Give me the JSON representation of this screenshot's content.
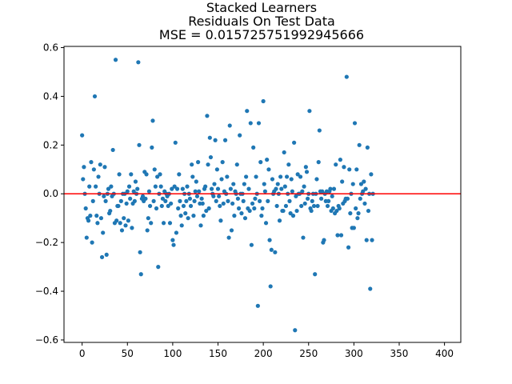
{
  "chart_data": {
    "type": "scatter",
    "title_lines": [
      "Stacked Learners",
      "Residuals On Test Data",
      "MSE = 0.015725751992945666"
    ],
    "xlabel": "",
    "ylabel": "",
    "xlim": [
      -20,
      418
    ],
    "ylim": [
      -0.61,
      0.605
    ],
    "x_ticks": [
      0,
      50,
      100,
      150,
      200,
      250,
      300,
      350,
      400
    ],
    "x_tick_labels": [
      "0",
      "50",
      "100",
      "150",
      "200",
      "250",
      "300",
      "350",
      "400"
    ],
    "y_ticks": [
      -0.6,
      -0.4,
      -0.2,
      0.0,
      0.2,
      0.4,
      0.6
    ],
    "y_tick_labels": [
      "−0.6",
      "−0.4",
      "−0.2",
      "0.0",
      "0.2",
      "0.4",
      "0.6"
    ],
    "grid": false,
    "reference_line": {
      "y": 0.0,
      "color": "#ff0000"
    },
    "point_color": "#1f77b4",
    "series": [
      {
        "points": [
          [
            0,
            0.24
          ],
          [
            1,
            0.06
          ],
          [
            2,
            0.11
          ],
          [
            3,
            0.0
          ],
          [
            4,
            -0.06
          ],
          [
            5,
            -0.18
          ],
          [
            6,
            -0.1
          ],
          [
            7,
            -0.11
          ],
          [
            8,
            0.03
          ],
          [
            9,
            -0.09
          ],
          [
            10,
            0.13
          ],
          [
            11,
            -0.2
          ],
          [
            12,
            -0.03
          ],
          [
            13,
            0.1
          ],
          [
            14,
            0.4
          ],
          [
            15,
            0.03
          ],
          [
            16,
            -0.09
          ],
          [
            17,
            -0.12
          ],
          [
            18,
            0.07
          ],
          [
            19,
            0.0
          ],
          [
            20,
            0.12
          ],
          [
            21,
            -0.1
          ],
          [
            22,
            -0.26
          ],
          [
            23,
            -0.16
          ],
          [
            24,
            -0.01
          ],
          [
            25,
            0.11
          ],
          [
            26,
            -0.03
          ],
          [
            27,
            -0.25
          ],
          [
            28,
            0.0
          ],
          [
            29,
            0.02
          ],
          [
            30,
            -0.08
          ],
          [
            31,
            -0.07
          ],
          [
            32,
            0.03
          ],
          [
            33,
            -0.01
          ],
          [
            34,
            0.18
          ],
          [
            35,
            0.0
          ],
          [
            36,
            -0.12
          ],
          [
            37,
            0.55
          ],
          [
            38,
            -0.11
          ],
          [
            39,
            -0.05
          ],
          [
            40,
            -0.05
          ],
          [
            41,
            0.08
          ],
          [
            42,
            -0.12
          ],
          [
            43,
            -0.03
          ],
          [
            44,
            -0.15
          ],
          [
            45,
            0.0
          ],
          [
            46,
            -0.1
          ],
          [
            47,
            0.0
          ],
          [
            48,
            -0.13
          ],
          [
            49,
            -0.04
          ],
          [
            50,
            0.01
          ],
          [
            51,
            -0.11
          ],
          [
            52,
            0.03
          ],
          [
            53,
            -0.02
          ],
          [
            54,
            0.08
          ],
          [
            55,
            -0.14
          ],
          [
            56,
            -0.04
          ],
          [
            57,
            0.01
          ],
          [
            58,
            -0.03
          ],
          [
            59,
            0.05
          ],
          [
            60,
            0.0
          ],
          [
            61,
            0.02
          ],
          [
            62,
            0.54
          ],
          [
            63,
            0.2
          ],
          [
            64,
            -0.24
          ],
          [
            65,
            -0.33
          ],
          [
            66,
            -0.02
          ],
          [
            67,
            -0.01
          ],
          [
            68,
            -0.03
          ],
          [
            69,
            0.09
          ],
          [
            70,
            -0.02
          ],
          [
            71,
            0.08
          ],
          [
            72,
            -0.15
          ],
          [
            73,
            -0.1
          ],
          [
            74,
            0.01
          ],
          [
            75,
            -0.05
          ],
          [
            76,
            -0.12
          ],
          [
            77,
            0.19
          ],
          [
            78,
            0.3
          ],
          [
            79,
            -0.03
          ],
          [
            80,
            0.1
          ],
          [
            81,
            0.03
          ],
          [
            82,
            -0.06
          ],
          [
            83,
            0.07
          ],
          [
            84,
            -0.3
          ],
          [
            85,
            0.0
          ],
          [
            86,
            0.08
          ],
          [
            87,
            0.03
          ],
          [
            88,
            -0.05
          ],
          [
            89,
            -0.02
          ],
          [
            90,
            -0.12
          ],
          [
            91,
            0.01
          ],
          [
            92,
            -0.03
          ],
          [
            93,
            0.0
          ],
          [
            94,
            -0.01
          ],
          [
            95,
            -0.05
          ],
          [
            96,
            0.0
          ],
          [
            97,
            -0.12
          ],
          [
            98,
            -0.04
          ],
          [
            99,
            0.02
          ],
          [
            100,
            -0.19
          ],
          [
            101,
            -0.21
          ],
          [
            102,
            0.03
          ],
          [
            103,
            0.21
          ],
          [
            104,
            -0.16
          ],
          [
            105,
            0.02
          ],
          [
            106,
            -0.06
          ],
          [
            107,
            0.08
          ],
          [
            108,
            -0.03
          ],
          [
            109,
            -0.09
          ],
          [
            110,
            -0.13
          ],
          [
            111,
            0.02
          ],
          [
            112,
            -0.05
          ],
          [
            113,
            0.0
          ],
          [
            114,
            -0.08
          ],
          [
            115,
            -0.03
          ],
          [
            116,
            0.03
          ],
          [
            117,
            -0.1
          ],
          [
            118,
            0.0
          ],
          [
            119,
            -0.02
          ],
          [
            120,
            -0.05
          ],
          [
            121,
            0.12
          ],
          [
            122,
            0.07
          ],
          [
            123,
            -0.09
          ],
          [
            124,
            -0.03
          ],
          [
            125,
            0.01
          ],
          [
            126,
            0.05
          ],
          [
            127,
            -0.01
          ],
          [
            128,
            0.13
          ],
          [
            129,
            0.01
          ],
          [
            130,
            -0.04
          ],
          [
            131,
            -0.13
          ],
          [
            132,
            -0.02
          ],
          [
            133,
            -0.04
          ],
          [
            134,
            -0.09
          ],
          [
            135,
            0.02
          ],
          [
            136,
            0.03
          ],
          [
            137,
            -0.07
          ],
          [
            138,
            0.32
          ],
          [
            139,
            0.12
          ],
          [
            140,
            -0.06
          ],
          [
            141,
            0.23
          ],
          [
            142,
            0.15
          ],
          [
            143,
            0.02
          ],
          [
            144,
            0.0
          ],
          [
            145,
            -0.01
          ],
          [
            146,
            0.04
          ],
          [
            147,
            0.22
          ],
          [
            148,
            -0.03
          ],
          [
            149,
            0.1
          ],
          [
            150,
            0.02
          ],
          [
            151,
            -0.01
          ],
          [
            152,
            -0.05
          ],
          [
            153,
            -0.11
          ],
          [
            154,
            0.06
          ],
          [
            155,
            0.13
          ],
          [
            156,
            -0.04
          ],
          [
            157,
            0.01
          ],
          [
            158,
            0.22
          ],
          [
            159,
            0.0
          ],
          [
            160,
            0.07
          ],
          [
            161,
            -0.03
          ],
          [
            162,
            -0.18
          ],
          [
            163,
            0.28
          ],
          [
            164,
            0.02
          ],
          [
            165,
            -0.15
          ],
          [
            166,
            -0.04
          ],
          [
            167,
            0.04
          ],
          [
            168,
            -0.09
          ],
          [
            169,
            0.01
          ],
          [
            170,
            0.0
          ],
          [
            171,
            0.12
          ],
          [
            172,
            -0.02
          ],
          [
            173,
            -0.06
          ],
          [
            174,
            0.24
          ],
          [
            175,
            0.0
          ],
          [
            176,
            -0.08
          ],
          [
            177,
            0.0
          ],
          [
            178,
            -0.03
          ],
          [
            179,
            0.04
          ],
          [
            180,
            -0.1
          ],
          [
            181,
            0.07
          ],
          [
            182,
            0.34
          ],
          [
            183,
            -0.06
          ],
          [
            184,
            0.02
          ],
          [
            185,
            -0.07
          ],
          [
            186,
            0.29
          ],
          [
            187,
            -0.21
          ],
          [
            188,
            -0.04
          ],
          [
            189,
            0.19
          ],
          [
            190,
            -0.06
          ],
          [
            191,
            -0.02
          ],
          [
            192,
            0.07
          ],
          [
            193,
            0.0
          ],
          [
            194,
            -0.46
          ],
          [
            195,
            0.29
          ],
          [
            196,
            -0.03
          ],
          [
            197,
            0.13
          ],
          [
            198,
            -0.09
          ],
          [
            199,
            -0.06
          ],
          [
            200,
            0.38
          ],
          [
            201,
            0.04
          ],
          [
            202,
            0.01
          ],
          [
            203,
            -0.12
          ],
          [
            204,
            0.14
          ],
          [
            205,
            -0.03
          ],
          [
            206,
            0.1
          ],
          [
            207,
            -0.19
          ],
          [
            208,
            -0.38
          ],
          [
            209,
            -0.23
          ],
          [
            210,
            0.06
          ],
          [
            211,
            0.0
          ],
          [
            212,
            0.01
          ],
          [
            213,
            -0.24
          ],
          [
            214,
            0.02
          ],
          [
            215,
            -0.05
          ],
          [
            216,
            0.04
          ],
          [
            217,
            0.0
          ],
          [
            218,
            -0.11
          ],
          [
            219,
            0.07
          ],
          [
            220,
            0.02
          ],
          [
            221,
            -0.07
          ],
          [
            222,
            -0.07
          ],
          [
            223,
            0.17
          ],
          [
            224,
            0.03
          ],
          [
            225,
            -0.05
          ],
          [
            226,
            0.07
          ],
          [
            227,
            0.0
          ],
          [
            228,
            0.12
          ],
          [
            229,
            -0.03
          ],
          [
            230,
            -0.08
          ],
          [
            231,
            0.06
          ],
          [
            232,
            0.01
          ],
          [
            233,
            -0.09
          ],
          [
            234,
            0.21
          ],
          [
            235,
            -0.56
          ],
          [
            236,
            -0.01
          ],
          [
            237,
            -0.07
          ],
          [
            238,
            0.08
          ],
          [
            239,
            0.0
          ],
          [
            240,
            0.0
          ],
          [
            241,
            0.07
          ],
          [
            242,
            -0.05
          ],
          [
            243,
            0.01
          ],
          [
            244,
            -0.18
          ],
          [
            245,
            0.03
          ],
          [
            246,
            -0.04
          ],
          [
            247,
            0.11
          ],
          [
            248,
            0.09
          ],
          [
            249,
            -0.02
          ],
          [
            250,
            0.0
          ],
          [
            251,
            0.34
          ],
          [
            252,
            -0.06
          ],
          [
            253,
            -0.07
          ],
          [
            254,
            -0.03
          ],
          [
            255,
            0.0
          ],
          [
            256,
            -0.05
          ],
          [
            257,
            -0.33
          ],
          [
            258,
            0.0
          ],
          [
            259,
            0.06
          ],
          [
            260,
            -0.05
          ],
          [
            261,
            0.13
          ],
          [
            262,
            0.26
          ],
          [
            263,
            0.01
          ],
          [
            264,
            -0.02
          ],
          [
            265,
            0.01
          ],
          [
            266,
            -0.2
          ],
          [
            267,
            -0.19
          ],
          [
            268,
            0.0
          ],
          [
            269,
            -0.03
          ],
          [
            270,
            0.01
          ],
          [
            271,
            -0.05
          ],
          [
            272,
            -0.03
          ],
          [
            273,
            0.01
          ],
          [
            274,
            0.02
          ],
          [
            275,
            -0.07
          ],
          [
            276,
            -0.01
          ],
          [
            277,
            -0.06
          ],
          [
            278,
            0.02
          ],
          [
            279,
            -0.08
          ],
          [
            280,
            0.12
          ],
          [
            281,
            -0.07
          ],
          [
            282,
            -0.17
          ],
          [
            283,
            -0.05
          ],
          [
            284,
            -0.06
          ],
          [
            285,
            0.14
          ],
          [
            286,
            -0.17
          ],
          [
            287,
            0.05
          ],
          [
            288,
            -0.04
          ],
          [
            289,
            0.11
          ],
          [
            290,
            -0.03
          ],
          [
            291,
            -0.02
          ],
          [
            292,
            0.48
          ],
          [
            293,
            -0.02
          ],
          [
            294,
            -0.22
          ],
          [
            295,
            0.1
          ],
          [
            296,
            -0.08
          ],
          [
            297,
            0.0
          ],
          [
            298,
            -0.14
          ],
          [
            299,
            0.04
          ],
          [
            300,
            -0.14
          ],
          [
            301,
            0.29
          ],
          [
            302,
            -0.06
          ],
          [
            303,
            0.1
          ],
          [
            304,
            -0.1
          ],
          [
            305,
            -0.08
          ],
          [
            306,
            0.2
          ],
          [
            307,
            -0.02
          ],
          [
            308,
            0.04
          ],
          [
            309,
            0.0
          ],
          [
            310,
            0.01
          ],
          [
            311,
            0.05
          ],
          [
            312,
            -0.04
          ],
          [
            313,
            0.02
          ],
          [
            314,
            -0.19
          ],
          [
            315,
            0.19
          ],
          [
            316,
            -0.07
          ],
          [
            317,
            0.0
          ],
          [
            318,
            -0.39
          ],
          [
            319,
            0.08
          ],
          [
            320,
            -0.19
          ],
          [
            321,
            0.0
          ]
        ]
      }
    ]
  }
}
